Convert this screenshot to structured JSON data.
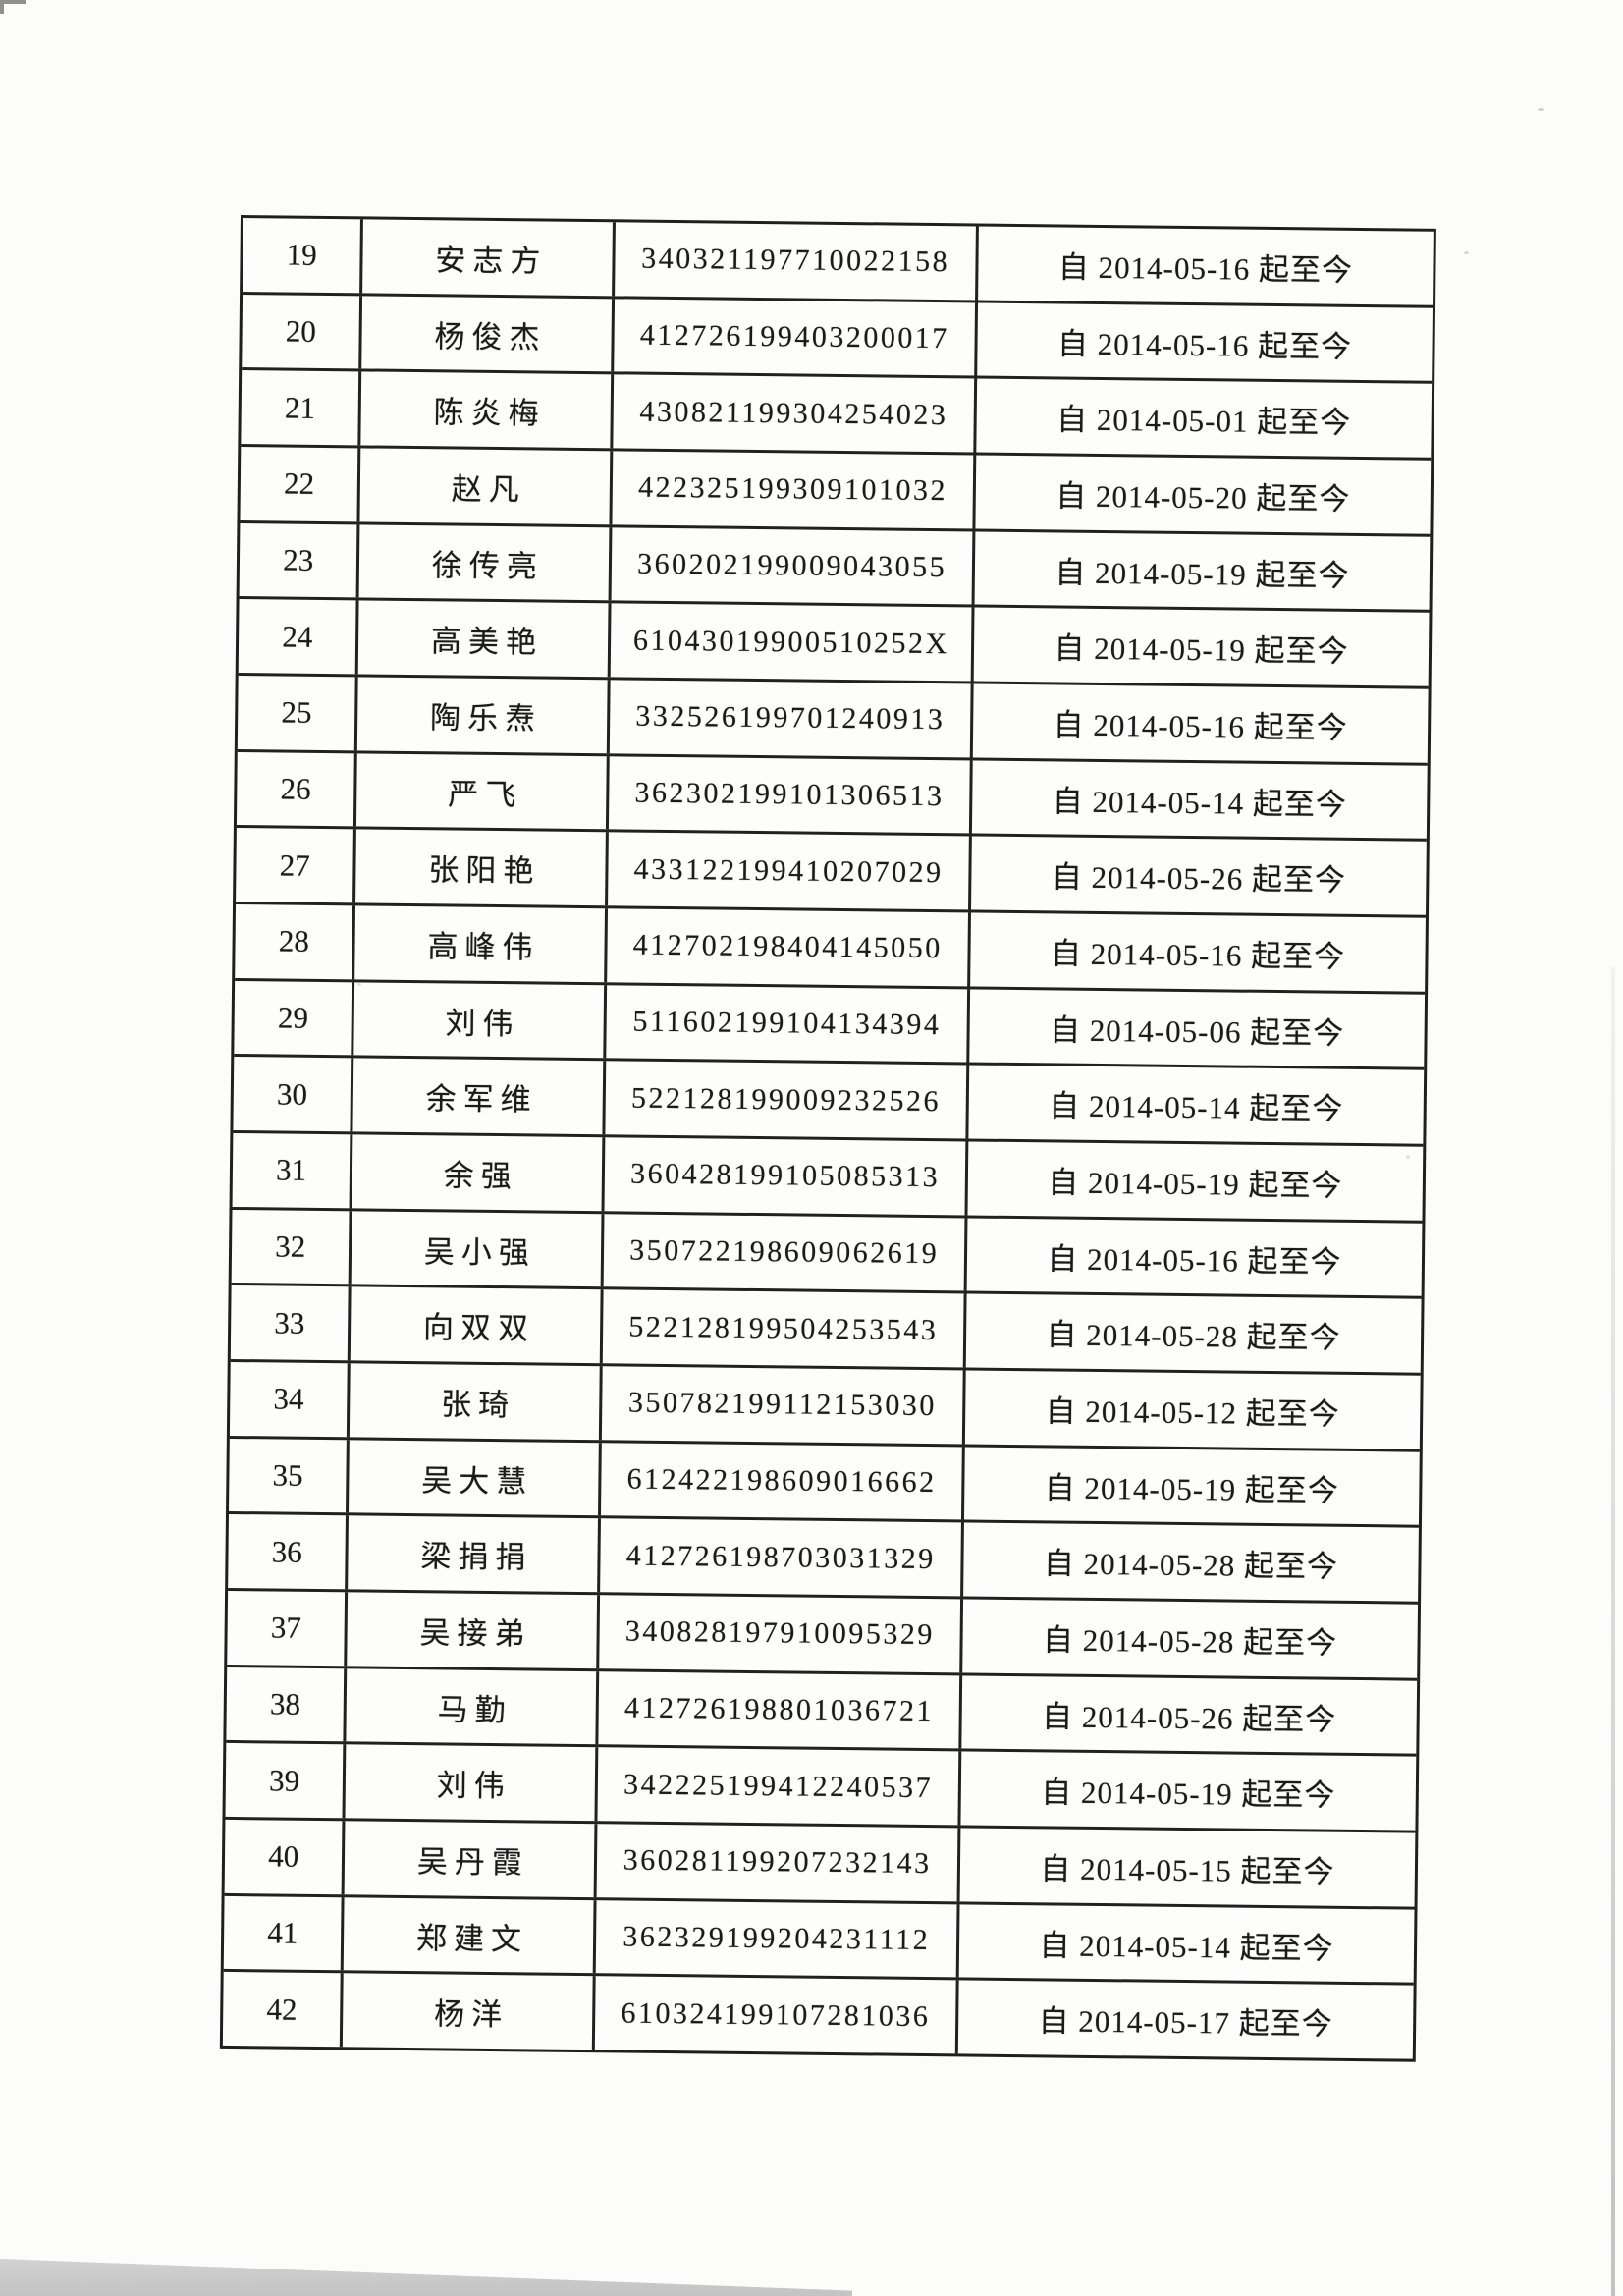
{
  "document": {
    "type": "scanned-roster-table",
    "visible_row_range": "19-42"
  },
  "colors": {
    "ink": "#1a1a1a",
    "table_border": "#212121",
    "page_background": "#fcfcfb",
    "scan_shadow": "#c8c8c8"
  },
  "table": {
    "rows": [
      {
        "no": "19",
        "name": "安志方",
        "id": "340321197710022158",
        "period": "自 2014-05-16 起至今"
      },
      {
        "no": "20",
        "name": "杨俊杰",
        "id": "412726199403200017",
        "period": "自 2014-05-16 起至今"
      },
      {
        "no": "21",
        "name": "陈炎梅",
        "id": "430821199304254023",
        "period": "自 2014-05-01 起至今"
      },
      {
        "no": "22",
        "name": "赵凡",
        "id": "422325199309101032",
        "period": "自 2014-05-20 起至今"
      },
      {
        "no": "23",
        "name": "徐传亮",
        "id": "360202199009043055",
        "period": "自 2014-05-19 起至今"
      },
      {
        "no": "24",
        "name": "高美艳",
        "id": "61043019900510252X",
        "period": "自 2014-05-19 起至今"
      },
      {
        "no": "25",
        "name": "陶乐焘",
        "id": "332526199701240913",
        "period": "自 2014-05-16 起至今"
      },
      {
        "no": "26",
        "name": "严飞",
        "id": "362302199101306513",
        "period": "自 2014-05-14 起至今"
      },
      {
        "no": "27",
        "name": "张阳艳",
        "id": "433122199410207029",
        "period": "自 2014-05-26 起至今"
      },
      {
        "no": "28",
        "name": "高峰伟",
        "id": "412702198404145050",
        "period": "自 2014-05-16 起至今"
      },
      {
        "no": "29",
        "name": "刘伟",
        "id": "511602199104134394",
        "period": "自 2014-05-06 起至今"
      },
      {
        "no": "30",
        "name": "余军维",
        "id": "522128199009232526",
        "period": "自 2014-05-14 起至今"
      },
      {
        "no": "31",
        "name": "余强",
        "id": "360428199105085313",
        "period": "自 2014-05-19 起至今"
      },
      {
        "no": "32",
        "name": "吴小强",
        "id": "350722198609062619",
        "period": "自 2014-05-16 起至今"
      },
      {
        "no": "33",
        "name": "向双双",
        "id": "522128199504253543",
        "period": "自 2014-05-28 起至今"
      },
      {
        "no": "34",
        "name": "张琦",
        "id": "350782199112153030",
        "period": "自 2014-05-12 起至今"
      },
      {
        "no": "35",
        "name": "吴大慧",
        "id": "612422198609016662",
        "period": "自 2014-05-19 起至今"
      },
      {
        "no": "36",
        "name": "梁捐捐",
        "id": "412726198703031329",
        "period": "自 2014-05-28 起至今"
      },
      {
        "no": "37",
        "name": "吴接弟",
        "id": "340828197910095329",
        "period": "自 2014-05-28 起至今"
      },
      {
        "no": "38",
        "name": "马勤",
        "id": "412726198801036721",
        "period": "自 2014-05-26 起至今"
      },
      {
        "no": "39",
        "name": "刘伟",
        "id": "342225199412240537",
        "period": "自 2014-05-19 起至今"
      },
      {
        "no": "40",
        "name": "吴丹霞",
        "id": "360281199207232143",
        "period": "自 2014-05-15 起至今"
      },
      {
        "no": "41",
        "name": "郑建文",
        "id": "362329199204231112",
        "period": "自 2014-05-14 起至今"
      },
      {
        "no": "42",
        "name": "杨洋",
        "id": "610324199107281036",
        "period": "自 2014-05-17 起至今"
      }
    ]
  }
}
